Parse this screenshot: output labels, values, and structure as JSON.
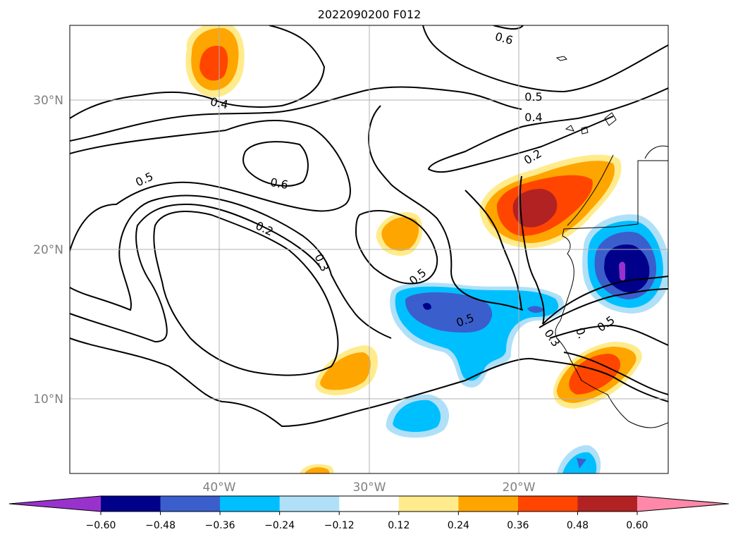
{
  "title": "2022090200 F012",
  "map": {
    "lat_labels": [
      "30°N",
      "20°N",
      "10°N"
    ],
    "lon_labels": [
      "40°W",
      "30°W",
      "20°W"
    ]
  },
  "contours": {
    "labels": [
      "0.6",
      "0.5",
      "0.4",
      "0.4",
      "0.6",
      "0.5",
      "0.2",
      "0.2",
      "0.3",
      "0.5",
      "0.3",
      "0.5",
      "0.5",
      "0."
    ]
  },
  "colorbar": {
    "extend": "both",
    "ticks": [
      "−0.60",
      "−0.48",
      "−0.36",
      "−0.24",
      "−0.12",
      "0.12",
      "0.24",
      "0.36",
      "0.48",
      "0.60"
    ],
    "colors": [
      "#9932cc",
      "#00008b",
      "#3a5fcd",
      "#00bfff",
      "#afe0f8",
      "#ffffff",
      "#ffeb8c",
      "#ffa500",
      "#ff4500",
      "#b22222",
      "#ff88aa"
    ]
  }
}
